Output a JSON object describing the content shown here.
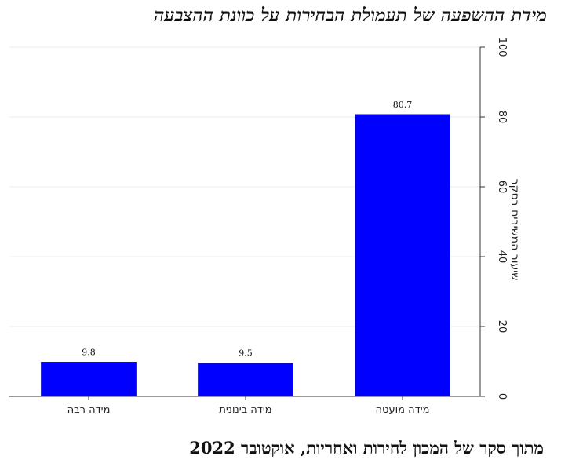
{
  "title": "מידת ההשפעה של תעמולת הבחירות על כוונת ההצבעה",
  "source_note": "מתוך סקר של המכון לחירות ואחריות, אוקטובר 2022",
  "chart_data": {
    "type": "bar",
    "categories": [
      "מידה רבה",
      "מידה בינונית",
      "מידה מועטה"
    ],
    "values": [
      9.8,
      9.5,
      80.7
    ],
    "value_labels": [
      "9.8",
      "9.5",
      "80.7"
    ],
    "ylabel": "שיעור המשיבים בסקר",
    "xlabel": "",
    "ylim": [
      0,
      100
    ],
    "yticks": [
      0,
      20,
      40,
      60,
      80,
      100
    ],
    "y_axis_side": "right",
    "grid": true,
    "bar_color": "#0000ff",
    "grid_color": "#e8e8f4"
  }
}
